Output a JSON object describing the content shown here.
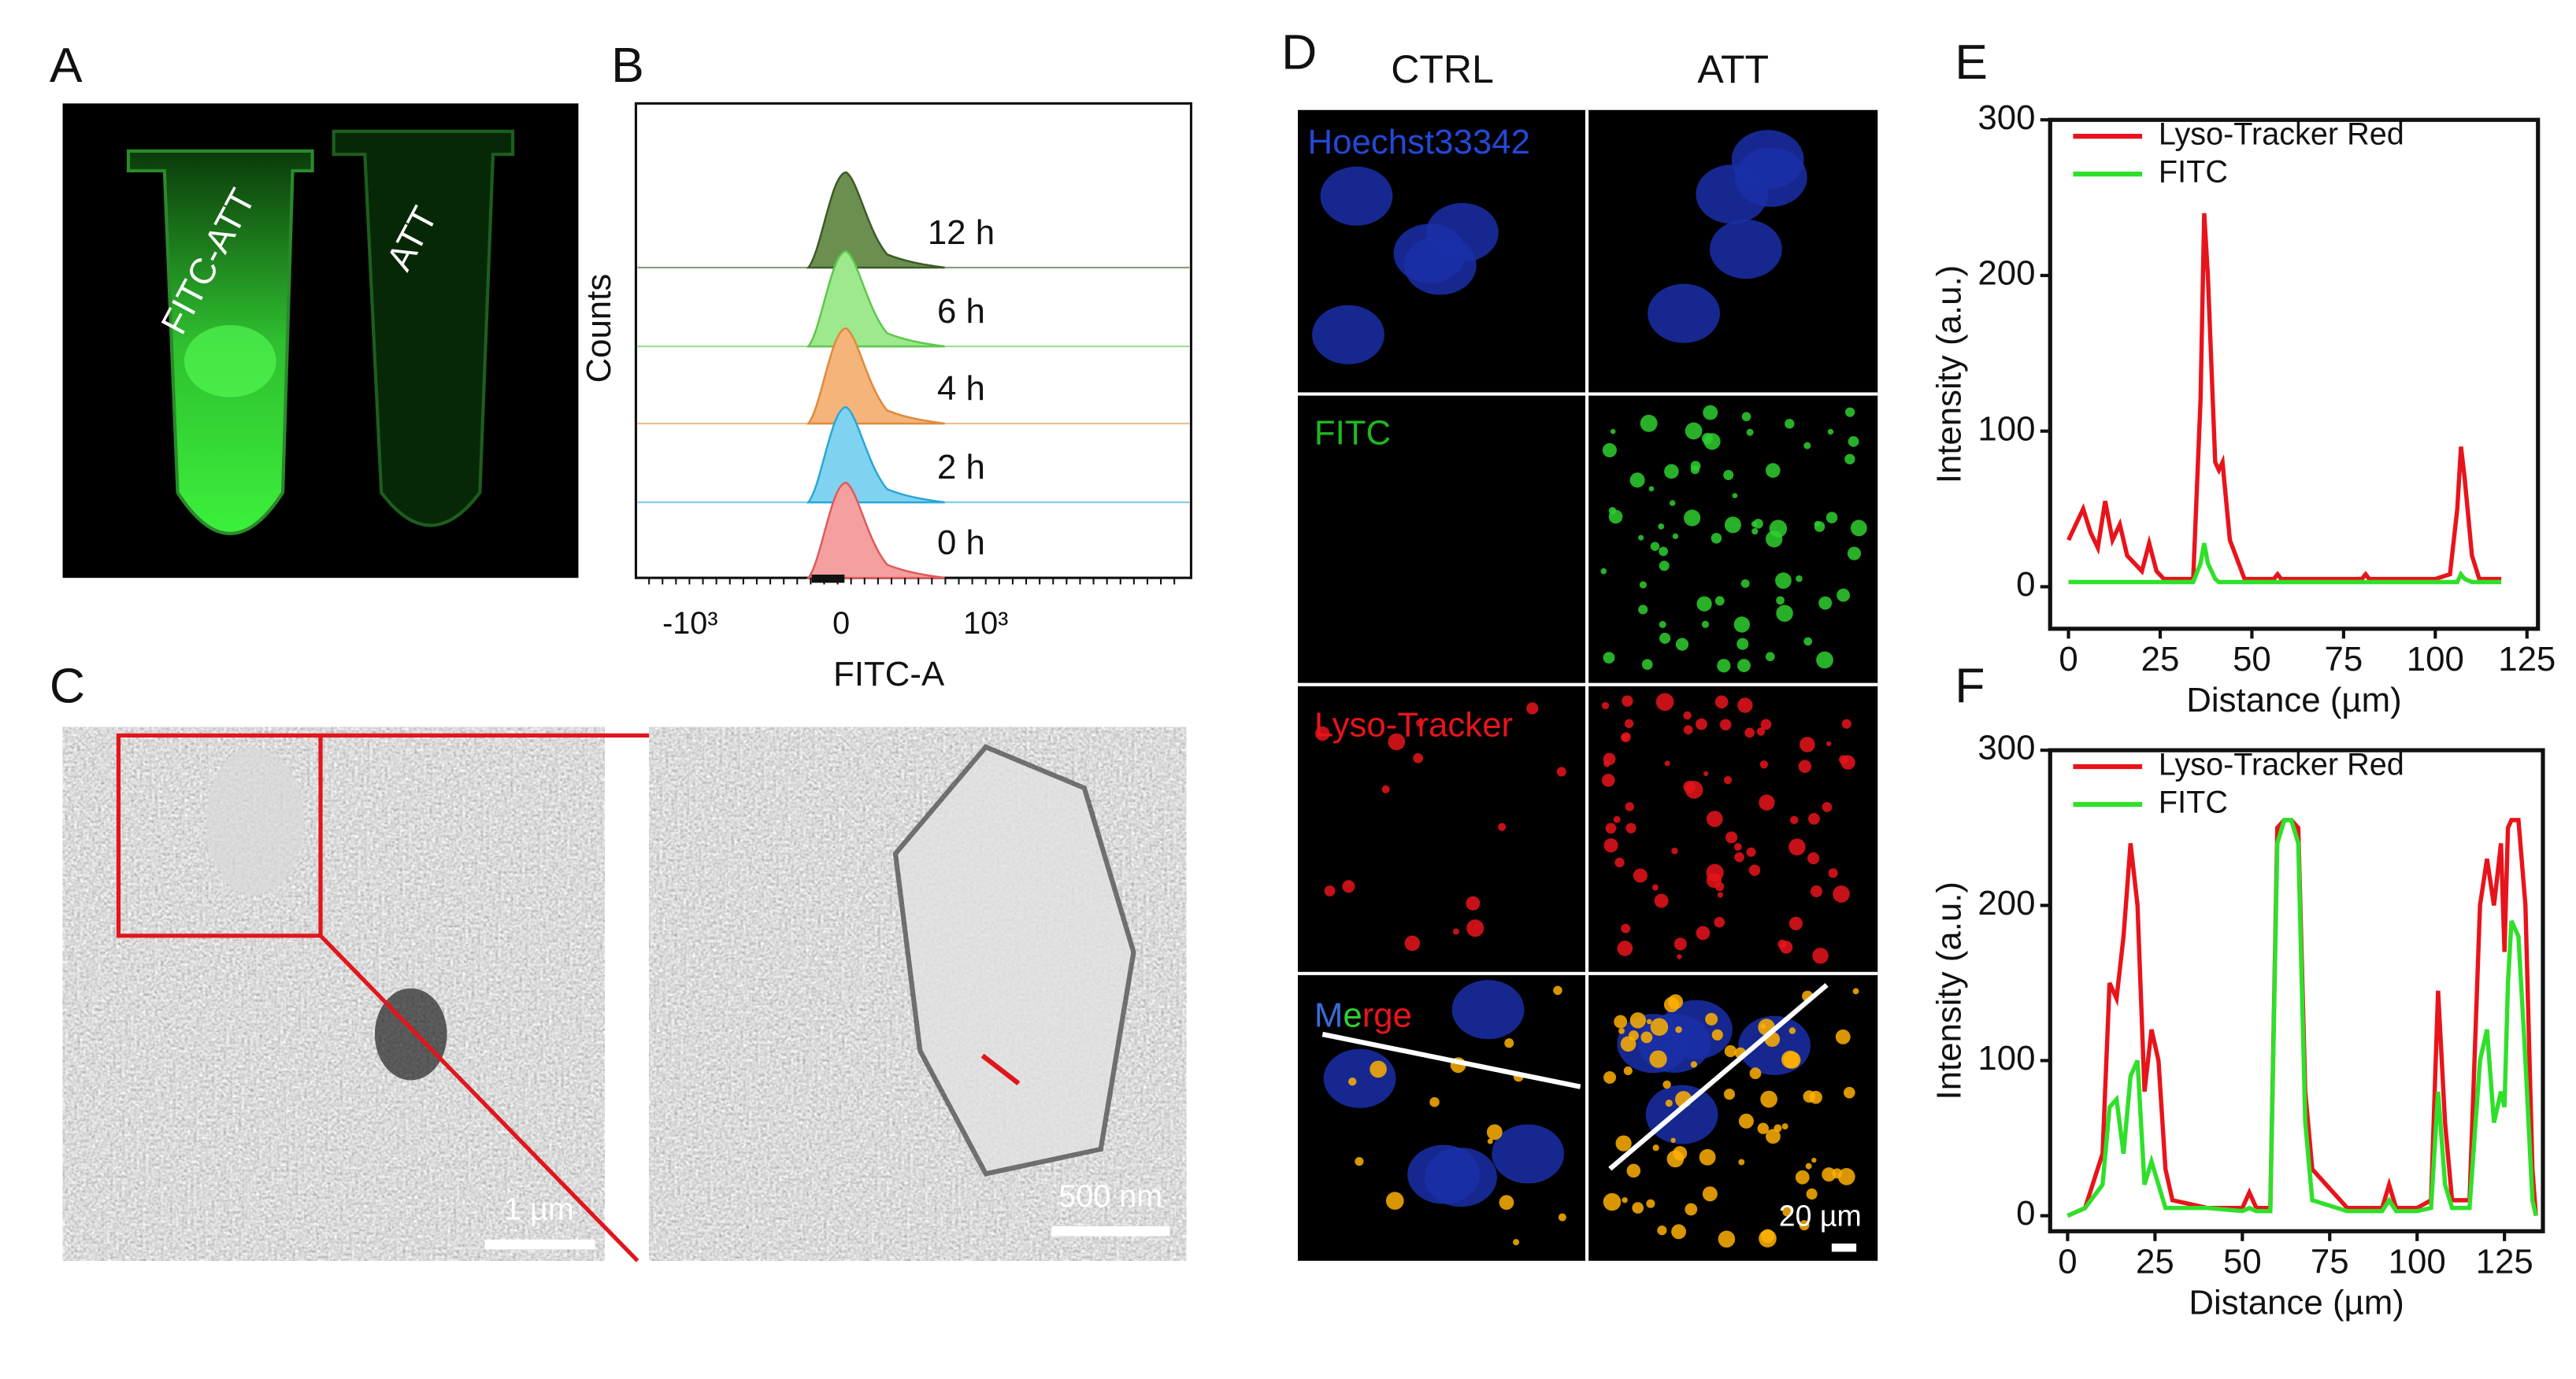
{
  "panels": {
    "A": {
      "label": "A",
      "tubes": [
        "FITC-ATT",
        "ATT"
      ]
    },
    "B": {
      "label": "B",
      "ylabel": "Counts",
      "xlabel": "FITC-A",
      "xtick_labels": [
        "-10³",
        "0",
        "10³"
      ],
      "rows": [
        "12 h",
        "6 h",
        "4 h",
        "2 h",
        "0 h"
      ]
    },
    "C": {
      "label": "C",
      "scale_bars": [
        "1 µm",
        "500 nm"
      ]
    },
    "D": {
      "label": "D",
      "columns": [
        "CTRL",
        "ATT"
      ],
      "rows": [
        "Hoechst33342",
        "FITC",
        "Lyso-Tracker",
        "Merge"
      ],
      "scale_bar": "20 µm"
    }
  },
  "chart_data": [
    {
      "type": "line",
      "label": "E",
      "xlabel": "Distance (µm)",
      "ylabel": "Intensity (a.u.)",
      "x": [
        0,
        2,
        4,
        6,
        8,
        10,
        12,
        14,
        16,
        18,
        20,
        22,
        24,
        26,
        30,
        34,
        36,
        37,
        38,
        40,
        41,
        42,
        44,
        48,
        56,
        57,
        58,
        60,
        80,
        81,
        82,
        100,
        104,
        106,
        107,
        108,
        110,
        112,
        118
      ],
      "series": [
        {
          "name": "Lyso-Tracker Red",
          "color": "#e8141b",
          "values": [
            30,
            40,
            50,
            35,
            25,
            55,
            30,
            40,
            20,
            15,
            10,
            28,
            10,
            5,
            5,
            5,
            120,
            240,
            200,
            80,
            75,
            80,
            30,
            5,
            5,
            8,
            5,
            5,
            5,
            8,
            5,
            5,
            8,
            50,
            90,
            70,
            20,
            5,
            5
          ]
        },
        {
          "name": "FITC",
          "color": "#2fe02a",
          "values": [
            3,
            3,
            3,
            3,
            3,
            3,
            3,
            3,
            3,
            3,
            3,
            3,
            3,
            3,
            3,
            3,
            15,
            28,
            15,
            5,
            3,
            3,
            3,
            3,
            3,
            3,
            3,
            3,
            3,
            3,
            3,
            3,
            3,
            3,
            8,
            5,
            3,
            3,
            3
          ]
        }
      ],
      "xlim": [
        -5,
        128
      ],
      "ylim": [
        -27,
        300
      ],
      "xticks": [
        0,
        25,
        50,
        75,
        100,
        125
      ],
      "yticks": [
        0,
        100,
        200,
        300
      ],
      "legend": "upper left"
    },
    {
      "type": "line",
      "label": "F",
      "xlabel": "Distance (µm)",
      "ylabel": "Intensity (a.u.)",
      "x": [
        0,
        5,
        10,
        12,
        14,
        16,
        18,
        20,
        22,
        24,
        26,
        28,
        30,
        40,
        50,
        52,
        54,
        58,
        60,
        62,
        64,
        66,
        68,
        70,
        80,
        90,
        92,
        94,
        100,
        104,
        106,
        108,
        110,
        115,
        118,
        120,
        122,
        124,
        125,
        126,
        127,
        129,
        131,
        133,
        134
      ],
      "series": [
        {
          "name": "Lyso-Tracker Red",
          "color": "#e8141b",
          "values": [
            0,
            5,
            40,
            150,
            140,
            180,
            240,
            200,
            80,
            120,
            100,
            30,
            10,
            5,
            5,
            15,
            5,
            5,
            250,
            255,
            255,
            250,
            80,
            30,
            5,
            5,
            20,
            5,
            5,
            10,
            145,
            60,
            10,
            10,
            200,
            230,
            200,
            240,
            170,
            250,
            255,
            255,
            200,
            30,
            0
          ]
        },
        {
          "name": "FITC",
          "color": "#2fe02a",
          "values": [
            0,
            5,
            20,
            70,
            75,
            40,
            90,
            100,
            20,
            35,
            20,
            5,
            5,
            5,
            3,
            5,
            3,
            3,
            240,
            255,
            255,
            240,
            60,
            10,
            3,
            3,
            10,
            3,
            3,
            5,
            80,
            20,
            5,
            5,
            100,
            120,
            60,
            80,
            70,
            150,
            190,
            180,
            100,
            10,
            0
          ]
        }
      ],
      "xlim": [
        -5,
        136
      ],
      "ylim": [
        -10,
        300
      ],
      "xticks": [
        0,
        25,
        50,
        75,
        100,
        125
      ],
      "yticks": [
        0,
        100,
        200,
        300
      ],
      "legend": "upper left"
    }
  ]
}
